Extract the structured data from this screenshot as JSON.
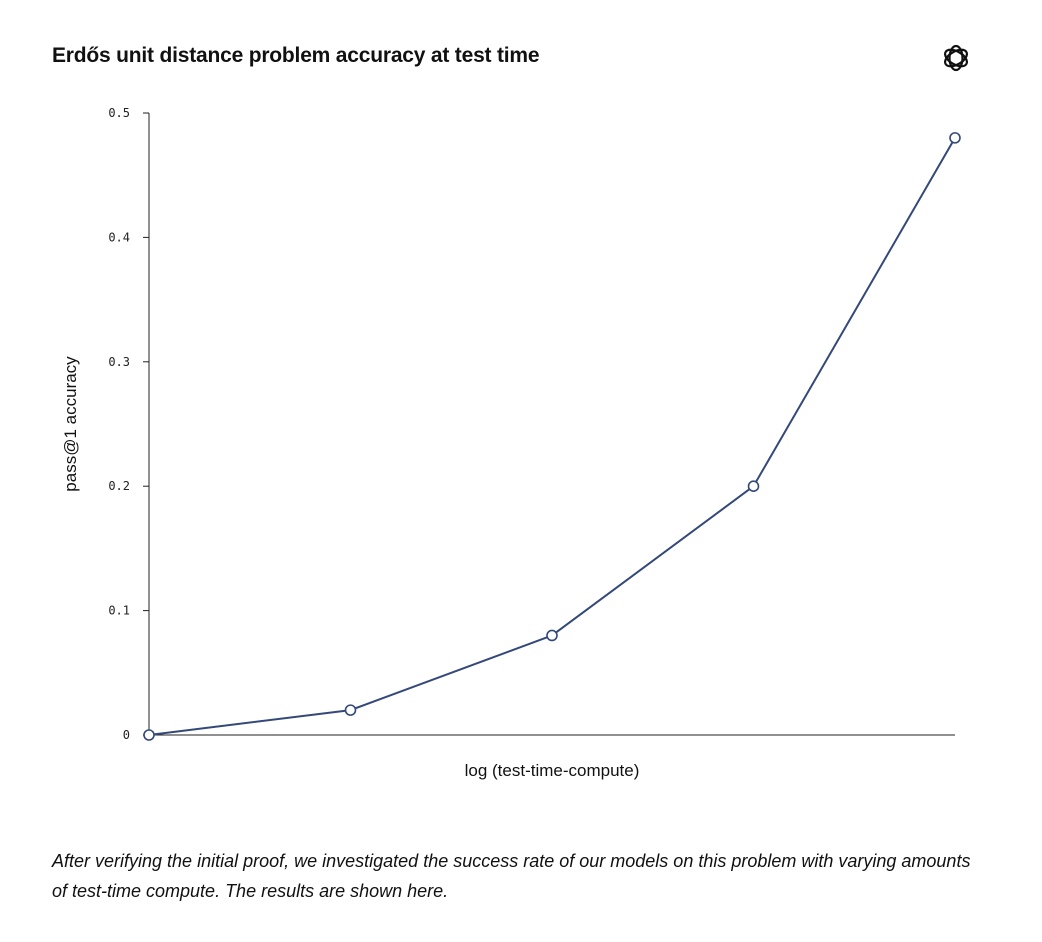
{
  "title": "Erdős unit distance problem accuracy at test time",
  "logo_icon": "openai-logo-icon",
  "caption": "After verifying the initial proof, we investigated the success rate of our models on this problem with varying amounts of test-time compute. The results are shown here.",
  "chart_data": {
    "type": "line",
    "xlabel": "log (test-time-compute)",
    "ylabel": "pass@1 accuracy",
    "x": [
      0,
      1,
      2,
      3,
      4
    ],
    "values": [
      0.0,
      0.02,
      0.08,
      0.2,
      0.48
    ],
    "ylim": [
      0,
      0.5
    ],
    "yticks": [
      "0",
      "0.1",
      "0.2",
      "0.3",
      "0.4",
      "0.5"
    ],
    "xticks_shown": false,
    "grid": false,
    "line_color": "#34497a",
    "marker_fill": "#ffffff"
  }
}
